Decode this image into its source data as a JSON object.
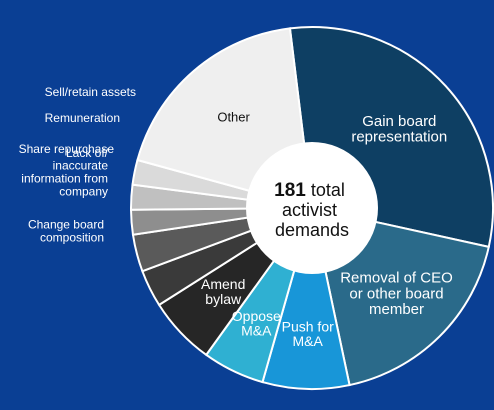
{
  "chart_data": {
    "type": "pie",
    "style": "donut",
    "title": "",
    "center_label": {
      "number": "181",
      "line1_rest": " total",
      "line2": "activist",
      "line3": "demands"
    },
    "total": 181,
    "slices": [
      {
        "label": "Gain board representation",
        "lines": [
          "Gain board",
          "representation"
        ],
        "value": 55,
        "color": "#0e3f63",
        "label_placement": "inside",
        "text_color": "#ffffff"
      },
      {
        "label": "Removal of CEO or other board member",
        "lines": [
          "Removal of CEO",
          "or other board",
          "member"
        ],
        "value": 33,
        "color": "#2a6a8a",
        "label_placement": "inside",
        "text_color": "#ffffff"
      },
      {
        "label": "Push for M&A",
        "lines": [
          "Push for",
          "M&A"
        ],
        "value": 14,
        "color": "#1896d8",
        "label_placement": "inside",
        "text_color": "#ffffff"
      },
      {
        "label": "Oppose M&A",
        "lines": [
          "Oppose",
          "M&A"
        ],
        "value": 10,
        "color": "#2fb0d2",
        "label_placement": "inside",
        "text_color": "#ffffff"
      },
      {
        "label": "Amend bylaw",
        "lines": [
          "Amend",
          "bylaw"
        ],
        "value": 11,
        "color": "#262626",
        "label_placement": "inside",
        "text_color": "#ffffff"
      },
      {
        "label": "Change board composition",
        "lines": [
          "Change board",
          "composition"
        ],
        "value": 6,
        "color": "#3a3a3a",
        "label_placement": "outside",
        "text_color": "#ffffff"
      },
      {
        "label": "Lack of/ inaccurate information from company",
        "lines": [
          "Lack of/",
          "inaccurate",
          "information from",
          "company"
        ],
        "value": 6,
        "color": "#5a5a5a",
        "label_placement": "outside",
        "text_color": "#ffffff"
      },
      {
        "label": "Share repurchase",
        "lines": [
          "Share repurchase"
        ],
        "value": 4,
        "color": "#8e8e8e",
        "label_placement": "outside",
        "text_color": "#ffffff"
      },
      {
        "label": "Remuneration",
        "lines": [
          "Remuneration"
        ],
        "value": 4,
        "color": "#c0c0c0",
        "label_placement": "outside",
        "text_color": "#ffffff"
      },
      {
        "label": "Sell/retain assets",
        "lines": [
          "Sell/retain assets"
        ],
        "value": 4,
        "color": "#dadada",
        "label_placement": "outside",
        "text_color": "#ffffff"
      },
      {
        "label": "Other",
        "lines": [
          "Other"
        ],
        "value": 34,
        "color": "#efefef",
        "label_placement": "inside",
        "text_color": "#111111"
      }
    ],
    "legend": "none",
    "grid": false
  }
}
